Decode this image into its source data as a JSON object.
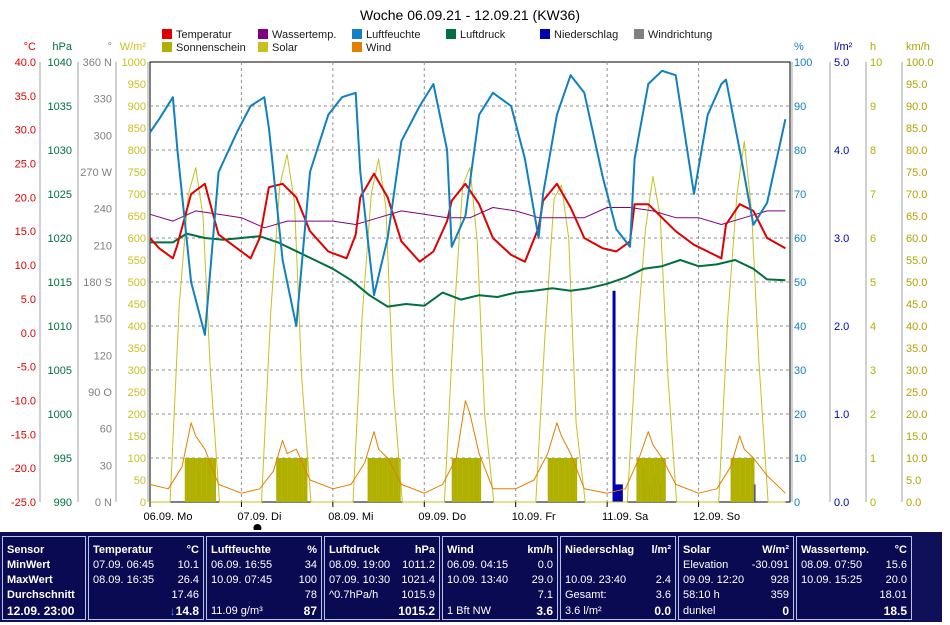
{
  "chart_data": {
    "type": "line",
    "title": "Woche 06.09.21 - 12.09.21 (KW36)",
    "x_labels": [
      {
        "day": 0,
        "label": "06.09.  Mo"
      },
      {
        "day": 1,
        "label": "07.09.  Di"
      },
      {
        "day": 2,
        "label": "08.09.  Mi"
      },
      {
        "day": 3,
        "label": "09.09.  Do"
      },
      {
        "day": 4,
        "label": "10.09.  Fr"
      },
      {
        "day": 5,
        "label": "11.09.  Sa"
      },
      {
        "day": 6,
        "label": "12.09.  So"
      }
    ],
    "legend": [
      {
        "name": "Temperatur",
        "color": "#e00000"
      },
      {
        "name": "Wassertemp.",
        "color": "#800080"
      },
      {
        "name": "Luftfeuchte",
        "color": "#1080c0"
      },
      {
        "name": "Luftdruck",
        "color": "#007040"
      },
      {
        "name": "Niederschlag",
        "color": "#0000b0"
      },
      {
        "name": "Windrichtung",
        "color": "#808080"
      },
      {
        "name": "Sonnenschein",
        "color": "#b0b000"
      },
      {
        "name": "Solar",
        "color": "#c8c020"
      },
      {
        "name": "Wind",
        "color": "#e08000"
      }
    ],
    "axes": {
      "temperature": {
        "unit": "°C",
        "color": "#e00000",
        "ylim": [
          -25,
          40
        ],
        "ticks": [
          "40.0",
          "35.0",
          "30.0",
          "25.0",
          "20.0",
          "15.0",
          "10.0",
          "5.0",
          "0.0",
          "-5.0",
          "-10.0",
          "-15.0",
          "-20.0",
          "-25.0"
        ]
      },
      "pressure": {
        "unit": "hPa",
        "color": "#007040",
        "ylim": [
          990,
          1040
        ],
        "ticks": [
          "1040",
          "1035",
          "1030",
          "1025",
          "1020",
          "1015",
          "1010",
          "1005",
          "1000",
          "995",
          "990"
        ]
      },
      "direction": {
        "unit": "°",
        "color": "#808080",
        "ylim": [
          0,
          360
        ],
        "ticks": [
          "360 N",
          "330",
          "300",
          "270 W",
          "240",
          "210",
          "180 S",
          "150",
          "120",
          "90 O",
          "60",
          "30",
          "0 N"
        ]
      },
      "solar": {
        "unit": "W/m²",
        "color": "#c8c020",
        "ylim": [
          0,
          1000
        ],
        "ticks": [
          "1000",
          "950",
          "900",
          "850",
          "800",
          "750",
          "700",
          "650",
          "600",
          "550",
          "500",
          "450",
          "400",
          "350",
          "300",
          "250",
          "200",
          "150",
          "100",
          "50",
          "0"
        ]
      },
      "humidity": {
        "unit": "%",
        "color": "#1080c0",
        "ylim": [
          0,
          100
        ],
        "ticks": [
          "100",
          "90",
          "80",
          "70",
          "60",
          "50",
          "40",
          "30",
          "20",
          "10",
          "0"
        ]
      },
      "rain": {
        "unit": "l/m²",
        "color": "#0000b0",
        "ylim": [
          0,
          5
        ],
        "ticks": [
          "5.0",
          "4.0",
          "3.0",
          "2.0",
          "1.0",
          "0.0"
        ]
      },
      "sunshine": {
        "unit": "h",
        "color": "#b0b000",
        "ylim": [
          0,
          10
        ],
        "ticks": [
          "10",
          "9",
          "8",
          "7",
          "6",
          "5",
          "4",
          "3",
          "2",
          "1",
          "0"
        ]
      },
      "wind": {
        "unit": "km/h",
        "color": "#b0a000",
        "ylim": [
          0,
          100
        ],
        "ticks": [
          "100.0",
          "95.0",
          "90.0",
          "85.0",
          "80.0",
          "75.0",
          "70.0",
          "65.0",
          "60.0",
          "55.0",
          "50.0",
          "45.0",
          "40.0",
          "35.0",
          "30.0",
          "25.0",
          "20.0",
          "15.0",
          "10.0",
          "5.0",
          "0.0"
        ]
      }
    },
    "series": [
      {
        "name": "Temperatur",
        "axis": "temperature",
        "color": "#e00000",
        "x": [
          0,
          0.1,
          0.25,
          0.3,
          0.45,
          0.6,
          0.7,
          0.75,
          0.95,
          1.1,
          1.2,
          1.3,
          1.45,
          1.6,
          1.75,
          1.95,
          2.15,
          2.25,
          2.3,
          2.45,
          2.6,
          2.75,
          2.95,
          3.1,
          3.25,
          3.3,
          3.45,
          3.6,
          3.75,
          3.95,
          4.1,
          4.25,
          4.3,
          4.45,
          4.6,
          4.75,
          4.95,
          5.1,
          5.25,
          5.3,
          5.45,
          5.6,
          5.75,
          5.95,
          6.1,
          6.25,
          6.3,
          6.45,
          6.6,
          6.75,
          6.95
        ],
        "y": [
          14,
          12.5,
          11,
          13,
          20.5,
          22,
          17,
          14.5,
          12.5,
          11,
          14,
          21.5,
          22,
          20,
          15,
          12,
          11,
          14.5,
          20,
          23.5,
          20,
          13.5,
          10.5,
          12,
          16.5,
          19.5,
          22,
          19,
          14,
          11.5,
          10.5,
          15.5,
          19.5,
          22,
          18.5,
          14,
          12.5,
          12,
          13.5,
          19,
          19,
          17,
          15,
          13,
          12,
          11,
          16,
          19,
          18,
          14,
          12.5
        ]
      },
      {
        "name": "Wassertemp.",
        "axis": "temperature",
        "color": "#800080",
        "x": [
          0,
          0.25,
          0.5,
          0.75,
          1,
          1.25,
          1.5,
          1.75,
          2,
          2.25,
          2.5,
          2.75,
          3,
          3.25,
          3.5,
          3.75,
          4,
          4.25,
          4.5,
          4.75,
          5,
          5.25,
          5.5,
          5.75,
          6,
          6.25,
          6.5,
          6.75,
          6.95
        ],
        "y": [
          17.5,
          16.5,
          18,
          17.5,
          17,
          15.5,
          16.5,
          16.5,
          16.5,
          16,
          17,
          18,
          17.5,
          17,
          17,
          18.5,
          18,
          17,
          17,
          17,
          18.5,
          18.5,
          18,
          17,
          17,
          16,
          17,
          18,
          18
        ]
      },
      {
        "name": "Luftfeuchte",
        "axis": "humidity",
        "color": "#1080c0",
        "x": [
          0,
          0.1,
          0.25,
          0.3,
          0.45,
          0.6,
          0.75,
          0.95,
          1.1,
          1.25,
          1.3,
          1.45,
          1.6,
          1.75,
          1.95,
          2.1,
          2.25,
          2.3,
          2.45,
          2.6,
          2.75,
          2.95,
          3.1,
          3.25,
          3.3,
          3.45,
          3.6,
          3.75,
          3.95,
          4.1,
          4.25,
          4.3,
          4.45,
          4.6,
          4.75,
          4.95,
          5.1,
          5.25,
          5.3,
          5.45,
          5.6,
          5.75,
          5.95,
          6.1,
          6.25,
          6.3,
          6.45,
          6.6,
          6.75,
          6.95
        ],
        "y": [
          84,
          87,
          92,
          80,
          50,
          38,
          75,
          84,
          90,
          92,
          85,
          55,
          40,
          75,
          88,
          92,
          93,
          75,
          47,
          60,
          82,
          90,
          95,
          80,
          58,
          65,
          88,
          93,
          90,
          78,
          60,
          70,
          88,
          97,
          93,
          74,
          62,
          58,
          78,
          95,
          98,
          97,
          70,
          88,
          95,
          96,
          80,
          63,
          68,
          87
        ]
      },
      {
        "name": "Luftdruck",
        "axis": "pressure",
        "color": "#007040",
        "x": [
          0,
          0.25,
          0.4,
          0.6,
          0.8,
          1,
          1.2,
          1.4,
          1.6,
          1.8,
          2,
          2.2,
          2.4,
          2.6,
          2.8,
          3,
          3.2,
          3.4,
          3.6,
          3.8,
          4,
          4.2,
          4.4,
          4.6,
          4.8,
          5,
          5.2,
          5.4,
          5.6,
          5.8,
          6,
          6.2,
          6.4,
          6.6,
          6.75,
          6.95
        ],
        "y": [
          1019.5,
          1019.5,
          1020.5,
          1020,
          1019.8,
          1020,
          1020.2,
          1019.5,
          1018.5,
          1017.5,
          1016.5,
          1015.2,
          1013.5,
          1012.2,
          1012.5,
          1012.3,
          1013.8,
          1013,
          1013.5,
          1013.3,
          1013.8,
          1014,
          1014.3,
          1014,
          1014.3,
          1014.8,
          1015.5,
          1016.5,
          1016.8,
          1017.5,
          1016.8,
          1017,
          1017.5,
          1016.5,
          1015.3,
          1015.2
        ]
      },
      {
        "name": "Solar",
        "axis": "solar",
        "color": "#c8c020",
        "x": [
          0,
          0.22,
          0.32,
          0.42,
          0.5,
          0.58,
          0.66,
          0.76,
          1,
          1.22,
          1.32,
          1.42,
          1.5,
          1.58,
          1.66,
          1.76,
          2,
          2.22,
          2.32,
          2.42,
          2.5,
          2.58,
          2.66,
          2.76,
          3,
          3.22,
          3.32,
          3.42,
          3.5,
          3.58,
          3.66,
          3.76,
          4,
          4.22,
          4.32,
          4.42,
          4.5,
          4.58,
          4.66,
          4.76,
          5,
          5.22,
          5.32,
          5.42,
          5.5,
          5.58,
          5.66,
          5.76,
          6,
          6.22,
          6.32,
          6.42,
          6.5,
          6.58,
          6.66,
          6.76,
          6.95
        ],
        "y": [
          0,
          0,
          450,
          700,
          760,
          650,
          300,
          0,
          0,
          0,
          430,
          720,
          790,
          680,
          280,
          0,
          0,
          0,
          420,
          700,
          780,
          670,
          260,
          0,
          0,
          0,
          400,
          720,
          760,
          590,
          200,
          0,
          0,
          0,
          380,
          690,
          720,
          600,
          180,
          0,
          0,
          0,
          360,
          620,
          740,
          650,
          300,
          0,
          0,
          0,
          420,
          700,
          820,
          660,
          320,
          0,
          0
        ]
      },
      {
        "name": "Wind",
        "axis": "wind",
        "color": "#e08000",
        "x": [
          0,
          0.2,
          0.35,
          0.45,
          0.5,
          0.6,
          0.75,
          1,
          1.2,
          1.35,
          1.45,
          1.5,
          1.6,
          1.75,
          2,
          2.2,
          2.35,
          2.45,
          2.5,
          2.6,
          2.75,
          3,
          3.2,
          3.35,
          3.45,
          3.5,
          3.6,
          3.75,
          4,
          4.2,
          4.35,
          4.45,
          4.5,
          4.6,
          4.75,
          5,
          5.2,
          5.35,
          5.45,
          5.5,
          5.6,
          5.75,
          6,
          6.2,
          6.35,
          6.45,
          6.5,
          6.6,
          6.75,
          6.95
        ],
        "y": [
          4,
          3,
          8,
          18,
          15,
          12,
          4,
          2,
          3,
          7,
          14,
          11,
          12,
          5,
          3,
          4,
          9,
          16,
          12,
          10,
          4,
          2,
          4,
          10,
          23,
          20,
          11,
          3,
          3,
          5,
          11,
          18,
          15,
          11,
          3,
          2,
          3,
          10,
          16,
          13,
          10,
          4,
          2,
          3,
          8,
          15,
          12,
          10,
          6,
          2
        ]
      },
      {
        "name": "Niederschlag",
        "axis": "rain",
        "color": "#0000b0",
        "kind": "bars",
        "x": [
          5.07,
          5.09,
          5.12,
          5.15,
          5.38,
          5.42,
          5.46,
          5.5,
          5.54,
          5.58,
          6.6
        ],
        "y": [
          2.4,
          0.2,
          0.2,
          0.2,
          0.4,
          0.2,
          0.2,
          0.3,
          0.2,
          0.2,
          0.2
        ]
      },
      {
        "name": "Sonnenschein",
        "axis": "sunshine",
        "color": "#b0b000",
        "kind": "bars",
        "day_ranges": [
          [
            0.38,
            0.72
          ],
          [
            1.38,
            1.72
          ],
          [
            2.38,
            2.72
          ],
          [
            3.3,
            3.6
          ],
          [
            4.35,
            4.65
          ],
          [
            5.32,
            5.62
          ],
          [
            6.35,
            6.6
          ]
        ],
        "value": 1.0
      }
    ]
  },
  "panel": {
    "sensor": {
      "title": "Sensor",
      "rows": [
        "MinWert",
        "MaxWert",
        "Durchschnitt"
      ],
      "now": "12.09.  23:00"
    },
    "temp": {
      "title": "Temperatur",
      "unit": "°C",
      "r1_time": "07.09.  06:45",
      "r1_val": "10.1",
      "r2_time": "08.09.  16:35",
      "r2_val": "26.4",
      "r3_val": "17.46",
      "cur_arrow": "↓",
      "cur": "14.8"
    },
    "hum": {
      "title": "Luftfeuchte",
      "unit": "%",
      "r1_time": "06.09.  16:55",
      "r1_val": "34",
      "r2_time": "10.09.  07:45",
      "r2_val": "100",
      "r3_val": "78",
      "cur_label": "11.09 g/m³",
      "cur": "87"
    },
    "press": {
      "title": "Luftdruck",
      "unit": "hPa",
      "r1_time": "08.09.  19:00",
      "r1_val": "1011.2",
      "r2_time": "07.09.  10:30",
      "r2_val": "1021.4",
      "r3_time": "^0.7hPa/h",
      "r3_val": "1015.9",
      "cur": "1015.2"
    },
    "wind": {
      "title": "Wind",
      "unit": "km/h",
      "r1_time": "06.09.  04:15",
      "r1_val": "0.0",
      "r2_time": "10.09.  13:40",
      "r2_val": "29.0",
      "r3_val": "7.1",
      "cur_label": "1 Bft NW",
      "cur": "3.6"
    },
    "rain": {
      "title": "Niederschlag",
      "unit": "l/m²",
      "r2_time": "10.09.  23:40",
      "r2_val": "2.4",
      "r3_time": "Gesamt:",
      "r3_val": "3.6",
      "cur_label": "3.6 l/m²",
      "cur": "0.0"
    },
    "solar": {
      "title": "Solar",
      "unit": "W/m²",
      "r1_time": "Elevation",
      "r1_val": "-30.091",
      "r2_time": "09.09.  12:20",
      "r2_val": "928",
      "r3_time": "58:10 h",
      "r3_val": "359",
      "cur_label": "dunkel",
      "cur": "0"
    },
    "water": {
      "title": "Wassertemp.",
      "unit": "°C",
      "r1_time": "08.09.  07:50",
      "r1_val": "15.6",
      "r2_time": "10.09.  15:25",
      "r2_val": "20.0",
      "r3_val": "18.01",
      "cur": "18.5"
    }
  }
}
